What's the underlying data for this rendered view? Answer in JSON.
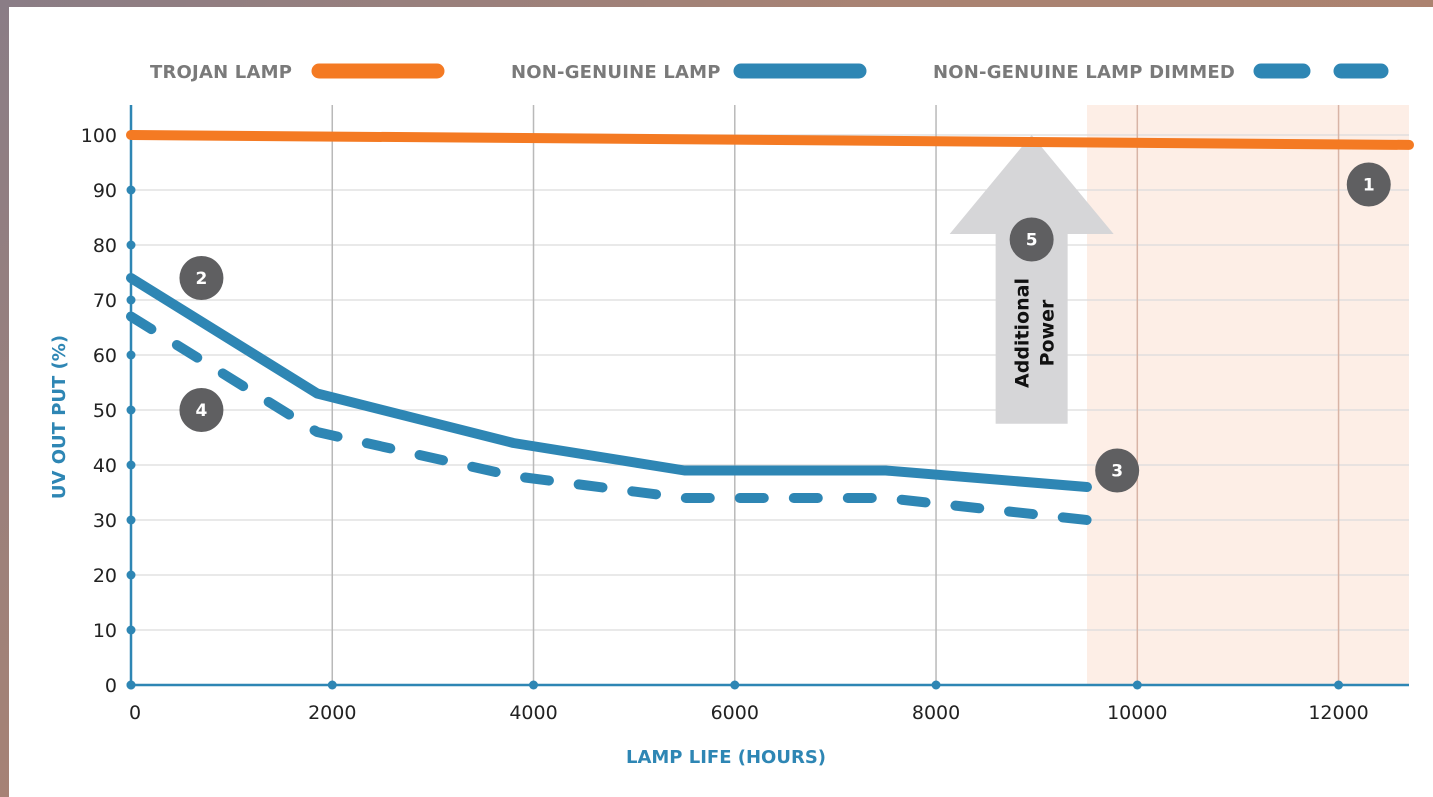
{
  "chart_data": {
    "type": "line",
    "xlabel": "LAMP LIFE (HOURS)",
    "ylabel": "UV OUT PUT (%)",
    "xlim": [
      0,
      12700
    ],
    "ylim": [
      0,
      100
    ],
    "x_ticks": [
      "0",
      "2000",
      "4000",
      "6000",
      "8000",
      "10000",
      "12000"
    ],
    "y_ticks": [
      "0",
      "10",
      "20",
      "30",
      "40",
      "50",
      "60",
      "70",
      "80",
      "90",
      "100"
    ],
    "grid": true,
    "legend_position": "top",
    "shaded_region": {
      "x_start": 9500,
      "x_end": 12700,
      "color": "#fdeee6"
    },
    "series": [
      {
        "name": "TROJAN LAMP",
        "color": "#f47a23",
        "dash": false,
        "x": [
          0,
          12700
        ],
        "y": [
          100,
          98.2
        ]
      },
      {
        "name": "NON-GENUINE LAMP",
        "color": "#2e86b4",
        "dash": false,
        "x": [
          0,
          1850,
          3800,
          5500,
          7500,
          9500
        ],
        "y": [
          74,
          53,
          44,
          39,
          39,
          36
        ]
      },
      {
        "name": "NON-GENUINE LAMP DIMMED",
        "color": "#2e86b4",
        "dash": true,
        "x": [
          0,
          1850,
          3800,
          5500,
          7500,
          9500
        ],
        "y": [
          67,
          46,
          38,
          34,
          34,
          30
        ]
      }
    ],
    "annotations": [
      {
        "label": "1",
        "x": 12300,
        "y": 91
      },
      {
        "label": "2",
        "x": 700,
        "y": 74
      },
      {
        "label": "3",
        "x": 9800,
        "y": 39
      },
      {
        "label": "4",
        "x": 700,
        "y": 50
      },
      {
        "label": "5",
        "x": 8950,
        "y": 81
      }
    ],
    "arrow": {
      "text_line1": "Additional",
      "text_line2": "Power",
      "color": "#d6d6d8"
    }
  }
}
